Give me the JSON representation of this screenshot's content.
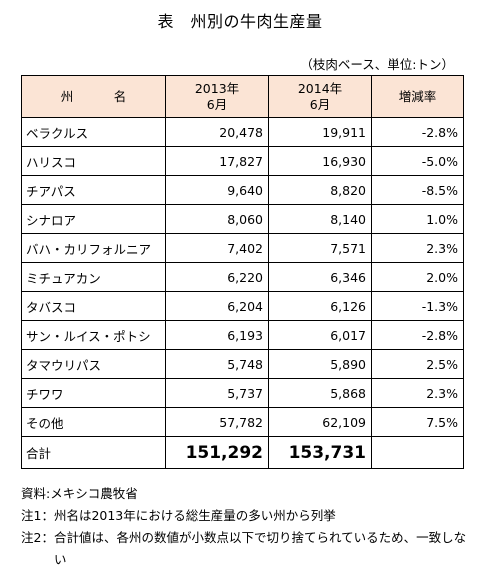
{
  "title": "表　州別の牛肉生産量",
  "unit_note": "（枝肉ベース、単位:トン）",
  "table": {
    "headers": {
      "state": "州　名",
      "y2013_line1": "2013年",
      "y2013_line2": "6月",
      "y2014_line1": "2014年",
      "y2014_line2": "6月",
      "change": "増減率"
    },
    "rows": [
      {
        "state": "ベラクルス",
        "y2013": "20,478",
        "y2014": "19,911",
        "change": "-2.8%"
      },
      {
        "state": "ハリスコ",
        "y2013": "17,827",
        "y2014": "16,930",
        "change": "-5.0%"
      },
      {
        "state": "チアパス",
        "y2013": "9,640",
        "y2014": "8,820",
        "change": "-8.5%"
      },
      {
        "state": "シナロア",
        "y2013": "8,060",
        "y2014": "8,140",
        "change": "1.0%"
      },
      {
        "state": "バハ・カリフォルニア",
        "y2013": "7,402",
        "y2014": "7,571",
        "change": "2.3%"
      },
      {
        "state": "ミチュアカン",
        "y2013": "6,220",
        "y2014": "6,346",
        "change": "2.0%"
      },
      {
        "state": "タバスコ",
        "y2013": "6,204",
        "y2014": "6,126",
        "change": "-1.3%"
      },
      {
        "state": "サン・ルイス・ポトシ",
        "y2013": "6,193",
        "y2014": "6,017",
        "change": "-2.8%"
      },
      {
        "state": "タマウリパス",
        "y2013": "5,748",
        "y2014": "5,890",
        "change": "2.5%"
      },
      {
        "state": "チワワ",
        "y2013": "5,737",
        "y2014": "5,868",
        "change": "2.3%"
      },
      {
        "state": "その他",
        "y2013": "57,782",
        "y2014": "62,109",
        "change": "7.5%"
      }
    ],
    "total": {
      "label": "合計",
      "y2013": "151,292",
      "y2014": "153,731",
      "change": ""
    }
  },
  "notes": {
    "source": "資料:メキシコ農牧省",
    "note1_label": "注1：",
    "note1_text": "州名は2013年における総生産量の多い州から列挙",
    "note2_label": "注2：",
    "note2_text": "合計値は、各州の数値が小数点以下で切り捨てられているため、一致しない"
  },
  "colors": {
    "header_bg": "#fbe4d5",
    "border": "#000000"
  }
}
